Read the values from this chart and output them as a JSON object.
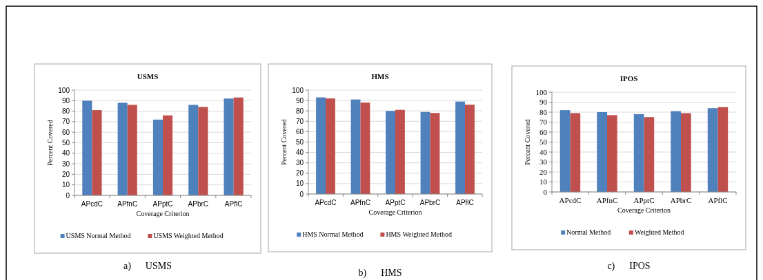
{
  "chart_data": [
    {
      "type": "bar",
      "title": "USMS",
      "xlabel": "Coverage Criterion",
      "ylabel": "Percent Covered",
      "categories": [
        "APcdC",
        "APfnC",
        "APptC",
        "APbrC",
        "APflC"
      ],
      "series": [
        {
          "name": "USMS Normal Method",
          "color": "#4f81bd",
          "values": [
            90,
            88,
            72,
            86,
            92
          ]
        },
        {
          "name": "USMS Weighted Method",
          "color": "#c0504d",
          "values": [
            81,
            86,
            76,
            84,
            93
          ]
        }
      ],
      "ylim": [
        0,
        100
      ],
      "yticks": [
        0,
        10,
        20,
        30,
        40,
        50,
        60,
        70,
        80,
        90,
        100
      ],
      "grid": "y",
      "legend": "bottom",
      "annotations": [
        "a)      USMS"
      ]
    },
    {
      "type": "bar",
      "title": "HMS",
      "xlabel": "Coverage Criterion",
      "ylabel": "Percent Covered",
      "categories": [
        "APcdC",
        "APfnC",
        "APptC",
        "APbrC",
        "APflC"
      ],
      "series": [
        {
          "name": "HMS Normal Method",
          "color": "#4f81bd",
          "values": [
            93,
            91,
            80,
            79,
            89
          ]
        },
        {
          "name": "HMS Weighted Method",
          "color": "#c0504d",
          "values": [
            92,
            88,
            81,
            78,
            86
          ]
        }
      ],
      "ylim": [
        0,
        100
      ],
      "yticks": [
        0,
        10,
        20,
        30,
        40,
        50,
        60,
        70,
        80,
        90,
        100
      ],
      "grid": "y",
      "legend": "bottom",
      "annotations": [
        "b)      HMS"
      ]
    },
    {
      "type": "bar",
      "title": "IPOS",
      "xlabel": "Coverage Criterion",
      "ylabel": "Percent Covered",
      "categories": [
        "APcdC",
        "APfnC",
        "APptC",
        "APbrC",
        "APflC"
      ],
      "series": [
        {
          "name": "Normal Method",
          "color": "#4f81bd",
          "values": [
            82,
            80,
            78,
            81,
            84
          ]
        },
        {
          "name": "Weighted Method",
          "color": "#c0504d",
          "values": [
            79,
            77,
            75,
            79,
            85
          ]
        }
      ],
      "ylim": [
        0,
        100
      ],
      "yticks": [
        0,
        10,
        20,
        30,
        40,
        50,
        60,
        70,
        80,
        90,
        100
      ],
      "grid": "y",
      "legend": "bottom",
      "annotations": [
        "c)      IPOS"
      ]
    }
  ]
}
